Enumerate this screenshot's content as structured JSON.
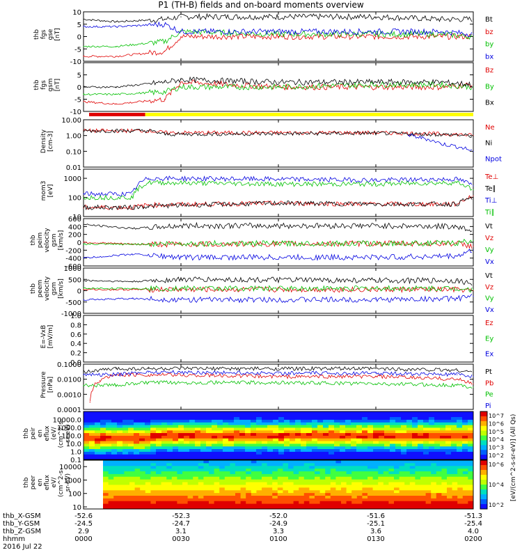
{
  "title": "P1 (TH-B) fields and on-board moments overview",
  "date": "2016 Jul 22",
  "colors": {
    "black": "#000000",
    "red": "#e00000",
    "green": "#00c000",
    "blue": "#0000e0",
    "yellow": "#ffff00"
  },
  "chart_data": [
    {
      "type": "line",
      "panel": "fgs-gse",
      "ylabel": [
        "thb",
        "fgs",
        "gse",
        "[nT]"
      ],
      "ylim": [
        -10,
        10
      ],
      "yticks": [
        "-10",
        "-5",
        "0",
        "5",
        "10"
      ],
      "series": [
        {
          "name": "Bt",
          "color": "black",
          "x": [
            0,
            10,
            25,
            30,
            60,
            90,
            110,
            120
          ],
          "y": [
            7,
            6,
            7,
            8,
            8,
            8,
            7,
            7
          ]
        },
        {
          "name": "bz",
          "color": "red",
          "x": [
            0,
            10,
            25,
            30,
            60,
            90,
            110,
            120
          ],
          "y": [
            -8,
            -8,
            -6,
            0,
            0,
            0,
            0,
            0
          ]
        },
        {
          "name": "by",
          "color": "green",
          "x": [
            0,
            10,
            25,
            30,
            60,
            90,
            110,
            120
          ],
          "y": [
            -4,
            -4,
            -2,
            2,
            1,
            1,
            1,
            0
          ]
        },
        {
          "name": "bx",
          "color": "blue",
          "x": [
            0,
            10,
            25,
            30,
            60,
            90,
            110,
            120
          ],
          "y": [
            4,
            4,
            5,
            2,
            2,
            2,
            2,
            1
          ]
        }
      ]
    },
    {
      "type": "line",
      "panel": "fgs-gsm",
      "ylabel": [
        "thb",
        "fgs",
        "gsm",
        "[nT]"
      ],
      "ylim": [
        -10,
        10
      ],
      "yticks": [
        "-10",
        "-5",
        "0",
        "5"
      ],
      "series": [
        {
          "name": "Bz",
          "color": "red",
          "x": [
            0,
            10,
            25,
            30,
            60,
            90,
            110,
            120
          ],
          "y": [
            -6,
            -7,
            -5,
            2,
            0,
            0,
            0,
            1
          ]
        },
        {
          "name": "By",
          "color": "green",
          "x": [
            0,
            10,
            25,
            30,
            60,
            90,
            110,
            120
          ],
          "y": [
            -3,
            -3,
            -2,
            0,
            0,
            1,
            1,
            0
          ]
        },
        {
          "name": "Bx",
          "color": "black",
          "x": [
            0,
            10,
            25,
            30,
            60,
            90,
            110,
            120
          ],
          "y": [
            0,
            0,
            2,
            3,
            2,
            2,
            2,
            1
          ]
        }
      ]
    },
    {
      "type": "line",
      "panel": "density",
      "yscale": "log",
      "ylabel": [
        "Density",
        "[cm-3]"
      ],
      "ylim": [
        0.01,
        10
      ],
      "yticks": [
        "0.01",
        "0.10",
        "1.00",
        "10.00"
      ],
      "series": [
        {
          "name": "Ne",
          "color": "red",
          "x": [
            0,
            10,
            20,
            25,
            60,
            90,
            115,
            120
          ],
          "y": [
            2,
            2,
            2,
            1.5,
            1.5,
            1.5,
            1.2,
            1.0
          ]
        },
        {
          "name": "Ni",
          "color": "black",
          "x": [
            0,
            10,
            20,
            25,
            60,
            90,
            115,
            120
          ],
          "y": [
            2,
            2,
            2,
            1.2,
            1.3,
            1.4,
            1.1,
            0.9
          ]
        },
        {
          "name": "Npot",
          "color": "blue",
          "x": [
            100,
            110,
            120
          ],
          "y": [
            1.0,
            0.3,
            0.1
          ]
        }
      ]
    },
    {
      "type": "line",
      "panel": "temperature",
      "yscale": "log",
      "ylabel": [
        "mom3",
        "[eV]"
      ],
      "ylim": [
        10,
        3000
      ],
      "yticks": [
        "10",
        "100",
        "1000"
      ],
      "series": [
        {
          "name": "Te⊥",
          "color": "red",
          "x": [
            0,
            15,
            20,
            60,
            90,
            115,
            120
          ],
          "y": [
            30,
            30,
            40,
            50,
            45,
            45,
            120
          ]
        },
        {
          "name": "Te∥",
          "color": "black",
          "x": [
            0,
            15,
            20,
            60,
            90,
            115,
            120
          ],
          "y": [
            30,
            30,
            35,
            50,
            45,
            45,
            100
          ]
        },
        {
          "name": "Ti⊥",
          "color": "blue",
          "x": [
            0,
            15,
            20,
            60,
            90,
            115,
            120
          ],
          "y": [
            150,
            150,
            1000,
            900,
            800,
            900,
            400
          ]
        },
        {
          "name": "Ti∥",
          "color": "green",
          "x": [
            0,
            15,
            20,
            60,
            90,
            115,
            120
          ],
          "y": [
            100,
            100,
            600,
            500,
            500,
            600,
            250
          ]
        }
      ]
    },
    {
      "type": "line",
      "panel": "peim-velocity",
      "ylabel": [
        "thb",
        "peim",
        "velocity",
        "gsm",
        "[km/s]"
      ],
      "ylim": [
        -600,
        600
      ],
      "yticks": [
        "-600",
        "-400",
        "-200",
        "0",
        "200",
        "400",
        "600"
      ],
      "series": [
        {
          "name": "Vt",
          "color": "black",
          "x": [
            0,
            15,
            30,
            90,
            115,
            120
          ],
          "y": [
            450,
            350,
            420,
            420,
            400,
            300
          ]
        },
        {
          "name": "Vz",
          "color": "red",
          "x": [
            0,
            15,
            30,
            90,
            115,
            120
          ],
          "y": [
            0,
            -50,
            -50,
            -30,
            -30,
            -100
          ]
        },
        {
          "name": "Vy",
          "color": "green",
          "x": [
            0,
            15,
            30,
            90,
            115,
            120
          ],
          "y": [
            -50,
            -50,
            -30,
            -30,
            -20,
            50
          ]
        },
        {
          "name": "Vx",
          "color": "blue",
          "x": [
            0,
            15,
            30,
            90,
            115,
            120
          ],
          "y": [
            -400,
            -300,
            -380,
            -380,
            -350,
            -200
          ]
        }
      ]
    },
    {
      "type": "line",
      "panel": "peem-velocity",
      "ylabel": [
        "thb",
        "peem",
        "velocity",
        "gsm",
        "[km/s]"
      ],
      "ylim": [
        -1000,
        1000
      ],
      "yticks": [
        "-1000",
        "-500",
        "0",
        "500",
        "1000"
      ],
      "series": [
        {
          "name": "Vt",
          "color": "black",
          "x": [
            0,
            15,
            30,
            90,
            115,
            120
          ],
          "y": [
            450,
            400,
            500,
            450,
            450,
            300
          ]
        },
        {
          "name": "Vz",
          "color": "red",
          "x": [
            0,
            15,
            30,
            90,
            115,
            120
          ],
          "y": [
            50,
            50,
            50,
            50,
            50,
            0
          ]
        },
        {
          "name": "Vy",
          "color": "green",
          "x": [
            0,
            15,
            30,
            90,
            115,
            120
          ],
          "y": [
            100,
            100,
            100,
            100,
            100,
            50
          ]
        },
        {
          "name": "Vx",
          "color": "blue",
          "x": [
            0,
            15,
            30,
            90,
            115,
            120
          ],
          "y": [
            -400,
            -350,
            -400,
            -400,
            -350,
            -250
          ]
        }
      ]
    },
    {
      "type": "line",
      "panel": "efield",
      "ylabel": [
        "E=-VxB",
        "[mV/m]"
      ],
      "ylim": [
        0,
        1
      ],
      "yticks": [
        "0.0",
        "0.2",
        "0.4",
        "0.6",
        "0.8",
        "1.0"
      ],
      "series": [
        {
          "name": "Ez",
          "color": "red",
          "x": [],
          "y": []
        },
        {
          "name": "Ey",
          "color": "green",
          "x": [],
          "y": []
        },
        {
          "name": "Ex",
          "color": "blue",
          "x": [],
          "y": []
        }
      ]
    },
    {
      "type": "line",
      "panel": "pressure",
      "yscale": "log",
      "ylabel": [
        "Pressure",
        "[nPa]"
      ],
      "ylim": [
        0.0001,
        0.1
      ],
      "yticks": [
        "0.0001",
        "0.0010",
        "0.0100",
        "0.1000"
      ],
      "series": [
        {
          "name": "Pt",
          "color": "black",
          "x": [
            0,
            10,
            20,
            60,
            90,
            115,
            120
          ],
          "y": [
            0.03,
            0.05,
            0.05,
            0.05,
            0.05,
            0.04,
            0.03
          ]
        },
        {
          "name": "Pb",
          "color": "red",
          "x": [
            2,
            5,
            10,
            20,
            60,
            90,
            115,
            120
          ],
          "y": [
            0.0003,
            0.008,
            0.02,
            0.02,
            0.015,
            0.015,
            0.01,
            0.005
          ]
        },
        {
          "name": "Pe",
          "color": "green",
          "x": [
            0,
            10,
            20,
            60,
            90,
            115,
            120
          ],
          "y": [
            0.004,
            0.004,
            0.006,
            0.006,
            0.005,
            0.004,
            0.003
          ]
        },
        {
          "name": "Pi",
          "color": "blue",
          "x": [
            0,
            10,
            20,
            60,
            90,
            115,
            120
          ],
          "y": [
            0.02,
            0.02,
            0.03,
            0.025,
            0.025,
            0.02,
            0.015
          ]
        }
      ]
    },
    {
      "type": "heatmap",
      "panel": "peir-eflux",
      "yscale": "log",
      "ylabel": [
        "thb",
        "peir",
        "en",
        "eflux",
        "(eV/",
        "(cm^2-s-",
        "sr-eV)"
      ],
      "ylim": [
        0.1,
        100000
      ],
      "yticks": [
        "0.1",
        "1.0",
        "10.0",
        "100.0",
        "1000.0",
        "10000.0"
      ]
    },
    {
      "type": "heatmap",
      "panel": "peer-eflux",
      "yscale": "log",
      "ylabel": [
        "thb",
        "peer",
        "en",
        "eflux",
        "eV/",
        "(cm^2-s-",
        "sr-eV)"
      ],
      "ylim": [
        7,
        30000
      ],
      "yticks": [
        "10",
        "100",
        "1000",
        "10000"
      ]
    }
  ],
  "colorbar": {
    "label": "[eV/(cm^2-s-sr-eV)] (All Qs)",
    "ticks_upper": [
      "10^2",
      "10^3",
      "10^4",
      "10^5",
      "10^6",
      "10^7"
    ],
    "ticks_lower": [
      "10^2",
      "10^4",
      "10^6"
    ]
  },
  "status_bar": {
    "colors": [
      "red",
      "yellow"
    ],
    "split_minute": 19
  },
  "xaxis": {
    "minutes": [
      0,
      30,
      60,
      90,
      120
    ],
    "rows": [
      {
        "label": "thb_X-GSM",
        "values": [
          "-52.6",
          "-52.3",
          "-52.0",
          "-51.6",
          "-51.3"
        ]
      },
      {
        "label": "thb_Y-GSM",
        "values": [
          "-24.5",
          "-24.7",
          "-24.9",
          "-25.1",
          "-25.4"
        ]
      },
      {
        "label": "thb_Z-GSM",
        "values": [
          "2.9",
          "3.1",
          "3.3",
          "3.6",
          "4.0"
        ]
      },
      {
        "label": "hhmm",
        "values": [
          "0000",
          "0030",
          "0100",
          "0130",
          "0200"
        ]
      }
    ]
  }
}
